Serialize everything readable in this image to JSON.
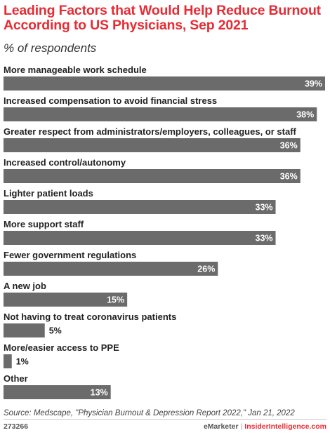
{
  "header": {
    "title": "Leading Factors that Would Help Reduce Burnout According to US Physicians, Sep 2021",
    "subtitle": "% of respondents"
  },
  "footer": {
    "source": "Source: Medscape, \"Physician Burnout & Depression Report 2022,\" Jan 21, 2022",
    "chart_id": "273266",
    "brand_left": "eMarketer",
    "brand_separator": "|",
    "brand_right": "InsiderIntelligence.com"
  },
  "colors": {
    "title": "#e62c34",
    "bar": "#6b6b6b",
    "bar_value_inside": "#ffffff",
    "bar_value_outside": "#222222"
  },
  "chart_data": {
    "type": "bar",
    "orientation": "horizontal",
    "title": "Leading Factors that Would Help Reduce Burnout According to US Physicians, Sep 2021",
    "subtitle": "% of respondents",
    "categories": [
      "More manageable work schedule",
      "Increased compensation to avoid financial stress",
      "Greater respect from administrators/employers, colleagues, or staff",
      "Increased control/autonomy",
      "Lighter patient loads",
      "More support staff",
      "Fewer government regulations",
      "A new job",
      "Not having to treat coronavirus patients",
      "More/easier access to PPE",
      "Other"
    ],
    "values": [
      39,
      38,
      36,
      36,
      33,
      33,
      26,
      15,
      5,
      1,
      13
    ],
    "value_labels": [
      "39%",
      "38%",
      "36%",
      "36%",
      "33%",
      "33%",
      "26%",
      "15%",
      "5%",
      "1%",
      "13%"
    ],
    "xlim": [
      0,
      39
    ],
    "grid": false,
    "legend": "none"
  }
}
